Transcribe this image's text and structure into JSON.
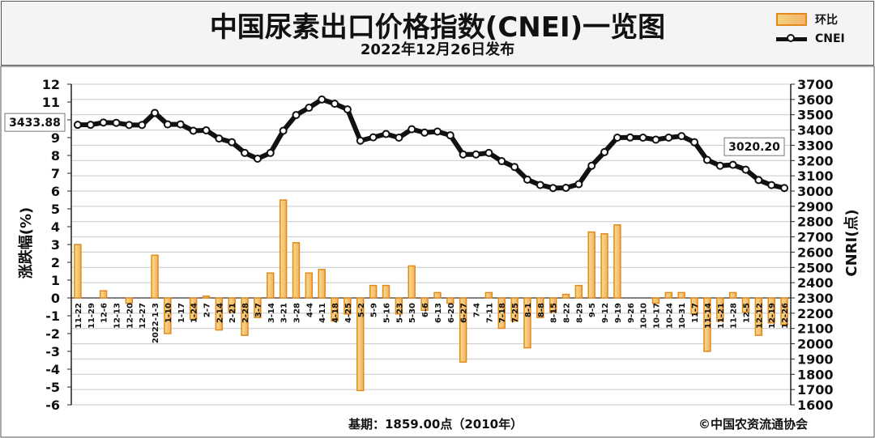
{
  "title": "中国尿素出口价格指数(CNEI)一览图",
  "subtitle": "2022年12月26日发布",
  "legend": {
    "bar_label": "环比",
    "line_label": "CNEI"
  },
  "footer": {
    "base": "基期：1859.00点（2010年）",
    "copyright": "©中国农资流通协会"
  },
  "colors": {
    "bar_fill_light": "#f7e08a",
    "bar_fill_dark": "#f3b062",
    "bar_stroke": "#e08a1e",
    "line": "#111111",
    "marker_fill": "#ffffff"
  },
  "chart_data": {
    "type": "bar+line",
    "xlabel": "",
    "ylabel_left": "涨跌幅(%)",
    "ylabel_right": "CNRI(点)",
    "ylim_left": [
      -6,
      12
    ],
    "yticks_left": [
      -6,
      -5,
      -4,
      -3,
      -2,
      -1,
      0,
      1,
      2,
      3,
      4,
      5,
      6,
      7,
      8,
      9,
      10,
      11,
      12
    ],
    "ylim_right": [
      1600,
      3700
    ],
    "yticks_right": [
      1600,
      1700,
      1800,
      1900,
      2000,
      2100,
      2200,
      2300,
      2400,
      2500,
      2600,
      2700,
      2800,
      2900,
      3000,
      3100,
      3200,
      3300,
      3400,
      3500,
      3600,
      3700
    ],
    "grid": true,
    "categories": [
      "11-22",
      "11-29",
      "12-6",
      "12-13",
      "12-20",
      "12-27",
      "2022-1-3",
      "1-10",
      "1-17",
      "1-24",
      "2-7",
      "2-14",
      "2-21",
      "2-28",
      "3-7",
      "3-14",
      "3-21",
      "3-28",
      "4-4",
      "4-11",
      "4-18",
      "4-25",
      "5-2",
      "5-9",
      "5-16",
      "5-23",
      "5-30",
      "6-6",
      "6-13",
      "6-20",
      "6-27",
      "7-4",
      "7-11",
      "7-18",
      "7-25",
      "8-1",
      "8-8",
      "8-15",
      "8-22",
      "8-29",
      "9-5",
      "9-12",
      "9-19",
      "9-26",
      "10-10",
      "10-17",
      "10-24",
      "10-31",
      "11-7",
      "11-14",
      "11-21",
      "11-28",
      "12-5",
      "12-12",
      "12-19",
      "12-26"
    ],
    "series": [
      {
        "name": "环比",
        "type": "bar",
        "axis": "left",
        "values": [
          3.0,
          0.0,
          0.4,
          0.0,
          -0.3,
          0.0,
          2.4,
          -2.0,
          0.0,
          -1.2,
          0.1,
          -1.8,
          -0.8,
          -2.1,
          -1.1,
          1.4,
          5.5,
          3.1,
          1.4,
          1.6,
          -1.3,
          -0.9,
          -5.2,
          0.7,
          0.7,
          -0.9,
          1.8,
          -0.7,
          0.3,
          -0.3,
          -3.6,
          0.0,
          0.3,
          -1.7,
          -1.3,
          -2.8,
          -1.1,
          -0.8,
          0.2,
          0.7,
          3.7,
          3.6,
          4.1,
          0.0,
          0.0,
          -0.3,
          0.3,
          0.3,
          -0.9,
          -3.0,
          -1.3,
          0.3,
          -0.8,
          -2.1,
          -1.4,
          -1.5
        ]
      },
      {
        "name": "CNEI",
        "type": "line",
        "axis": "right",
        "values": [
          3434,
          3434,
          3449,
          3447,
          3433,
          3433,
          3512,
          3437,
          3437,
          3395,
          3398,
          3344,
          3320,
          3250,
          3212,
          3250,
          3395,
          3498,
          3546,
          3600,
          3572,
          3535,
          3330,
          3352,
          3374,
          3350,
          3405,
          3383,
          3390,
          3365,
          3240,
          3240,
          3250,
          3196,
          3158,
          3075,
          3040,
          3020,
          3021,
          3045,
          3166,
          3255,
          3350,
          3351,
          3350,
          3337,
          3350,
          3360,
          3320,
          3204,
          3166,
          3172,
          3140,
          3072,
          3039,
          3020
        ]
      }
    ],
    "annotations": [
      {
        "label": "3433.88",
        "series": "CNEI",
        "index": 0
      },
      {
        "label": "3020.20",
        "series": "CNEI",
        "index": 55
      }
    ]
  }
}
